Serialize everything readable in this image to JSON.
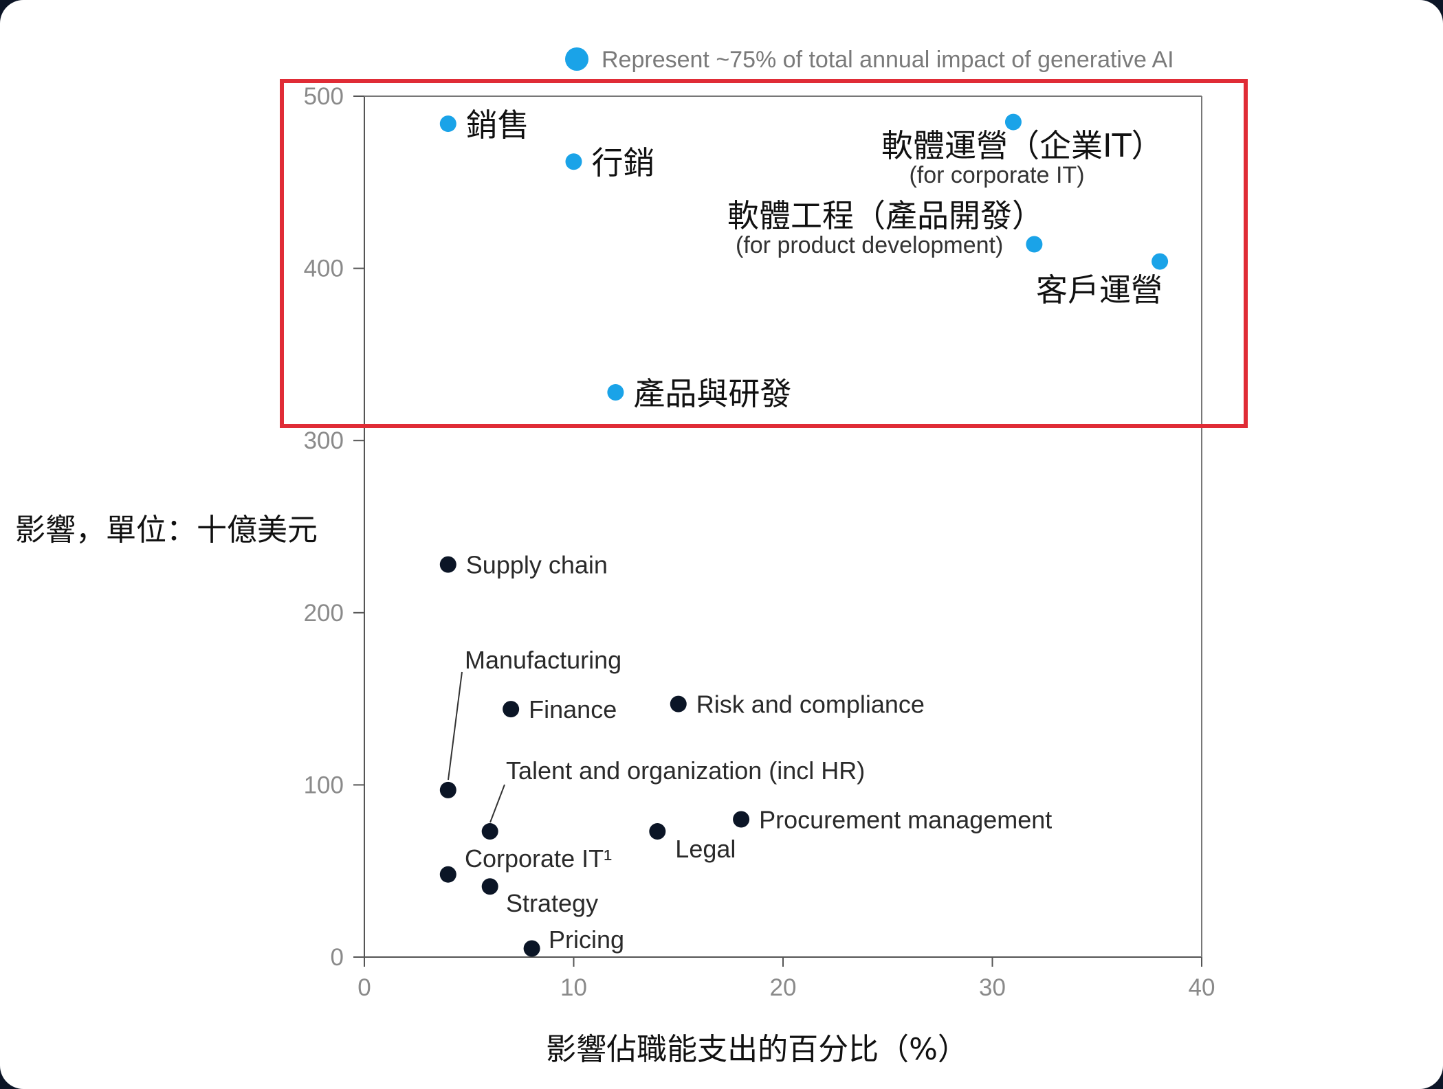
{
  "chart_data": {
    "type": "scatter",
    "xlabel": "影響佔職能支出的百分比（%）",
    "ylabel": "影響，單位：十億美元",
    "xlim": [
      0,
      40
    ],
    "ylim": [
      0,
      500
    ],
    "x_ticks": [
      "0",
      "10",
      "20",
      "30",
      "40"
    ],
    "y_ticks": [
      "0",
      "100",
      "200",
      "300",
      "400",
      "500"
    ],
    "grid": false,
    "legend": {
      "text": "Represent ~75% of total annual impact of generative AI",
      "placement": "top",
      "color": "#1aa3e8"
    },
    "highlight_box": {
      "color": "#e02c36",
      "covers": "top cluster (300–500)"
    },
    "colors": {
      "highlight": "#1aa3e8",
      "other": "#0b1526"
    },
    "points": [
      {
        "label": "銷售",
        "sublabel": "",
        "x": 4,
        "y": 484,
        "group": "highlight"
      },
      {
        "label": "行銷",
        "sublabel": "",
        "x": 10,
        "y": 462,
        "group": "highlight"
      },
      {
        "label": "軟體運營（企業IT）",
        "sublabel": "(for corporate IT)",
        "x": 31,
        "y": 485,
        "group": "highlight"
      },
      {
        "label": "軟體工程（產品開發）",
        "sublabel": "(for product development)",
        "x": 32,
        "y": 414,
        "group": "highlight"
      },
      {
        "label": "客戶運營",
        "sublabel": "",
        "x": 38,
        "y": 404,
        "group": "highlight"
      },
      {
        "label": "產品與研發",
        "sublabel": "",
        "x": 12,
        "y": 328,
        "group": "highlight"
      },
      {
        "label": "Supply chain",
        "sublabel": "",
        "x": 4,
        "y": 228,
        "group": "other"
      },
      {
        "label": "Manufacturing",
        "sublabel": "",
        "x": 4,
        "y": 97,
        "group": "other"
      },
      {
        "label": "Finance",
        "sublabel": "",
        "x": 7,
        "y": 144,
        "group": "other"
      },
      {
        "label": "Risk and compliance",
        "sublabel": "",
        "x": 15,
        "y": 147,
        "group": "other"
      },
      {
        "label": "Talent and organization (incl HR)",
        "sublabel": "",
        "x": 6,
        "y": 73,
        "group": "other"
      },
      {
        "label": "Procurement management",
        "sublabel": "",
        "x": 18,
        "y": 80,
        "group": "other"
      },
      {
        "label": "Legal",
        "sublabel": "",
        "x": 14,
        "y": 73,
        "group": "other"
      },
      {
        "label": "Corporate IT¹",
        "sublabel": "",
        "x": 4,
        "y": 48,
        "group": "other"
      },
      {
        "label": "Strategy",
        "sublabel": "",
        "x": 6,
        "y": 41,
        "group": "other"
      },
      {
        "label": "Pricing",
        "sublabel": "",
        "x": 8,
        "y": 5,
        "group": "other"
      }
    ]
  }
}
